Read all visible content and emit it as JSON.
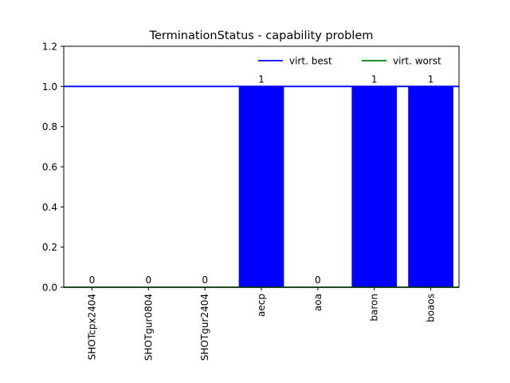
{
  "chart_data": {
    "type": "bar",
    "title": "TerminationStatus - capability problem",
    "xlabel": "",
    "ylabel": "",
    "categories": [
      "SHOTcpx2404",
      "SHOTgur0804",
      "SHOTgur2404",
      "aecp",
      "aoa",
      "baron",
      "boaos"
    ],
    "values": [
      0,
      0,
      0,
      1,
      0,
      1,
      1
    ],
    "data_labels": [
      "0",
      "0",
      "0",
      "1",
      "0",
      "1",
      "1"
    ],
    "bar_color": "#0000ff",
    "ylim": [
      0,
      1.2
    ],
    "yticks": [
      0.0,
      0.2,
      0.4,
      0.6,
      0.8,
      1.0,
      1.2
    ],
    "ytick_labels": [
      "0.0",
      "0.2",
      "0.4",
      "0.6",
      "0.8",
      "1.0",
      "1.2"
    ],
    "reference_lines": [
      {
        "name": "virt. best",
        "value": 1.0,
        "color": "#0000ff"
      },
      {
        "name": "virt. worst",
        "value": 0.0,
        "color": "#008000"
      }
    ],
    "legend_placement": "top-right",
    "grid": false
  }
}
